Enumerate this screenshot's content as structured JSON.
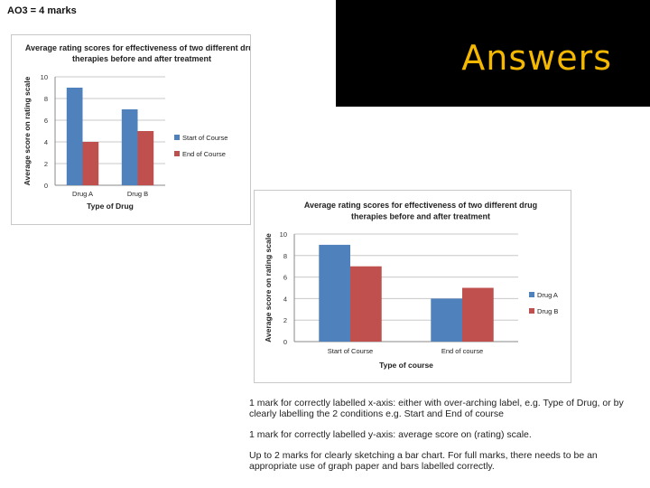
{
  "page": {
    "heading": "AO3 = 4 marks",
    "banner_title": "Answers"
  },
  "chart_data": [
    {
      "type": "bar",
      "title": "Average rating scores for effectiveness of two different drug therapies before and after treatment",
      "title_lines": [
        "Average rating scores for effectiveness of two different drug",
        "therapies before and after treatment"
      ],
      "xlabel": "Type of Drug",
      "ylabel": "Average score on rating scale",
      "categories": [
        "Drug A",
        "Drug B"
      ],
      "series": [
        {
          "name": "Start of Course",
          "values": [
            9,
            7
          ],
          "color": "#4f81bd"
        },
        {
          "name": "End of Course",
          "values": [
            4,
            5
          ],
          "color": "#c0504d"
        }
      ],
      "ylim": [
        0,
        10
      ],
      "yticks": [
        0,
        2,
        4,
        6,
        8,
        10
      ],
      "grid": true,
      "legend": "right"
    },
    {
      "type": "bar",
      "title": "Average rating scores for effectiveness of two different drug therapies before and after treatment",
      "title_lines": [
        "Average rating scores for effectiveness of two different drug",
        "therapies before and after treatment"
      ],
      "xlabel": "Type of course",
      "ylabel": "Average score on rating scale",
      "categories": [
        "Start of Course",
        "End of course"
      ],
      "series": [
        {
          "name": "Drug A",
          "values": [
            9,
            4
          ],
          "color": "#4f81bd"
        },
        {
          "name": "Drug B",
          "values": [
            7,
            5
          ],
          "color": "#c0504d"
        }
      ],
      "ylim": [
        0,
        10
      ],
      "yticks": [
        0,
        2,
        4,
        6,
        8,
        10
      ],
      "grid": true,
      "legend": "right"
    }
  ],
  "notes": [
    "1 mark for correctly labelled x-axis: either with over-arching label, e.g. Type of Drug, or by clearly labelling the 2 conditions e.g. Start and End of course",
    "1 mark for correctly labelled y-axis: average score on (rating) scale.",
    "Up to 2 marks for clearly sketching a bar chart. For full marks, there needs to be an appropriate use of graph paper and bars labelled correctly."
  ]
}
